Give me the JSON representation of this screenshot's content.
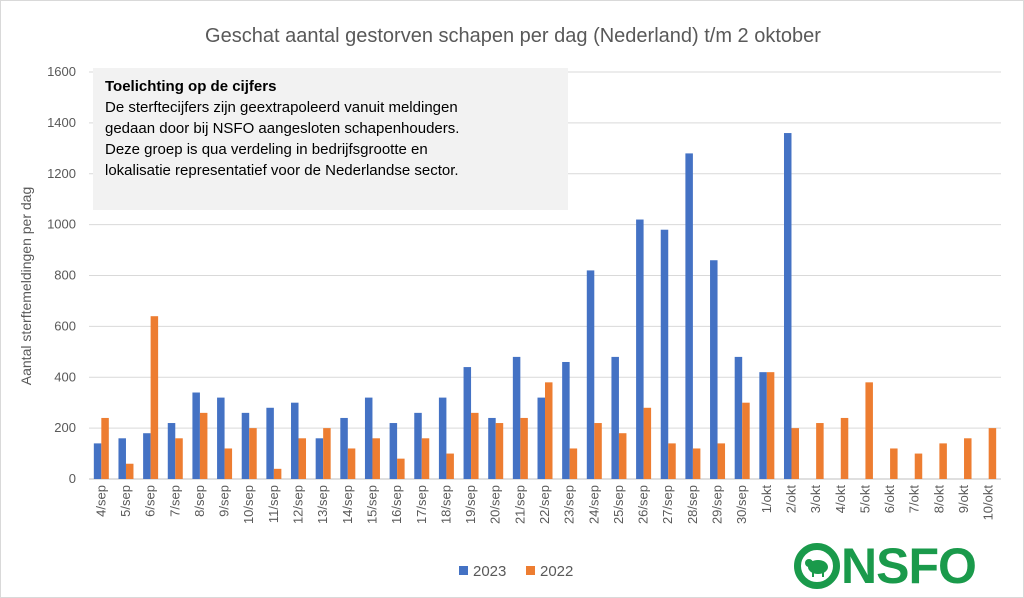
{
  "chart_data": {
    "type": "bar",
    "title": "Geschat aantal gestorven schapen per dag (Nederland) t/m 2 oktober",
    "xlabel": "",
    "ylabel": "Aantal sterftemeldingen per dag",
    "ylim": [
      0,
      1600
    ],
    "yticks": [
      0,
      200,
      400,
      600,
      800,
      1000,
      1200,
      1400,
      1600
    ],
    "grid": true,
    "legend_position": "bottom",
    "categories": [
      "4/sep",
      "5/sep",
      "6/sep",
      "7/sep",
      "8/sep",
      "9/sep",
      "10/sep",
      "11/sep",
      "12/sep",
      "13/sep",
      "14/sep",
      "15/sep",
      "16/sep",
      "17/sep",
      "18/sep",
      "19/sep",
      "20/sep",
      "21/sep",
      "22/sep",
      "23/sep",
      "24/sep",
      "25/sep",
      "26/sep",
      "27/sep",
      "28/sep",
      "29/sep",
      "30/sep",
      "1/okt",
      "2/okt",
      "3/okt",
      "4/okt",
      "5/okt",
      "6/okt",
      "7/okt",
      "8/okt",
      "9/okt",
      "10/okt"
    ],
    "series": [
      {
        "name": "2023",
        "color": "#4472c4",
        "values": [
          140,
          160,
          180,
          220,
          340,
          320,
          260,
          280,
          300,
          160,
          240,
          320,
          220,
          260,
          320,
          440,
          240,
          480,
          320,
          460,
          820,
          480,
          1020,
          980,
          1280,
          860,
          480,
          420,
          1360,
          null,
          null,
          null,
          null,
          null,
          null,
          null,
          null
        ]
      },
      {
        "name": "2022",
        "color": "#ed7d31",
        "values": [
          240,
          60,
          640,
          160,
          260,
          120,
          200,
          40,
          160,
          200,
          120,
          160,
          80,
          160,
          100,
          260,
          220,
          240,
          380,
          120,
          220,
          180,
          280,
          140,
          120,
          140,
          300,
          420,
          200,
          220,
          240,
          380,
          120,
          100,
          140,
          160,
          200
        ]
      }
    ]
  },
  "note": {
    "title": "Toelichting op de cijfers",
    "lines": [
      "De sterftecijfers zijn geextrapoleerd vanuit meldingen",
      "gedaan door bij NSFO aangesloten schapenhouders.",
      "Deze groep is qua verdeling in bedrijfsgrootte en",
      "lokalisatie representatief voor de Nederlandse sector."
    ]
  },
  "logo": {
    "text": "NSFO",
    "color": "#1a9a4b"
  }
}
